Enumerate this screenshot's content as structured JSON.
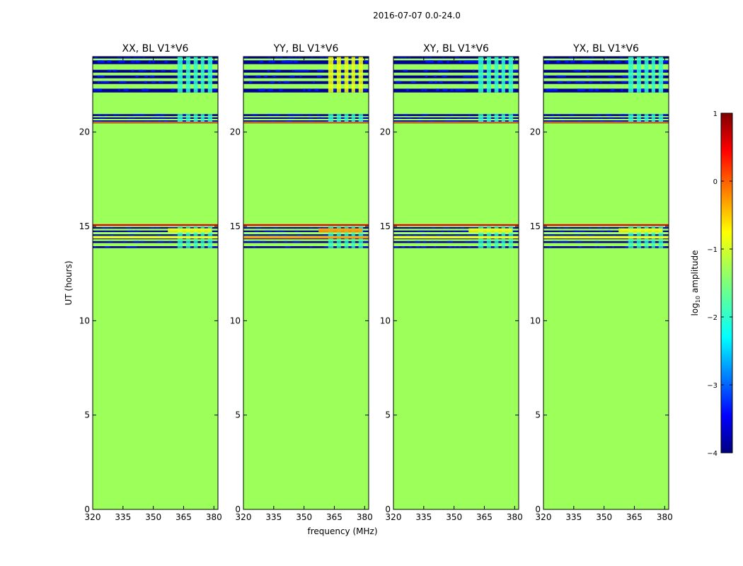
{
  "figure": {
    "title": "2016-07-07 0.0-24.0",
    "xlabel": "frequency (MHz)",
    "ylabel": "UT (hours)"
  },
  "chart_data": {
    "type": "heatmap",
    "title": "2016-07-07 0.0-24.0",
    "xlabel": "frequency (MHz)",
    "ylabel": "UT (hours)",
    "xlim": [
      320,
      382
    ],
    "ylim": [
      0,
      24
    ],
    "xticks": [
      320,
      335,
      350,
      365,
      380
    ],
    "yticks": [
      0,
      5,
      10,
      15,
      20
    ],
    "panels": [
      {
        "title": "XX, BL V1*V6",
        "pol": "XX",
        "strong_bands_15": "yellow"
      },
      {
        "title": "YY, BL V1*V6",
        "pol": "YY",
        "strong_bands_15": "orange"
      },
      {
        "title": "XY, BL V1*V6",
        "pol": "XY",
        "strong_bands_15": "yellow"
      },
      {
        "title": "YX, BL V1*V6",
        "pol": "YX",
        "strong_bands_15": "yellow"
      }
    ],
    "background_log10_amplitude": -1.2,
    "flagged_time_bands_hours": [
      [
        13.85,
        13.95
      ],
      [
        14.12,
        14.22
      ],
      [
        14.32,
        14.4
      ],
      [
        14.5,
        14.58
      ],
      [
        14.7,
        14.78
      ],
      [
        14.88,
        14.96
      ],
      [
        20.55,
        20.62
      ],
      [
        20.7,
        20.78
      ],
      [
        20.85,
        20.95
      ],
      [
        22.1,
        22.3
      ],
      [
        22.55,
        22.7
      ],
      [
        22.85,
        23.0
      ],
      [
        23.15,
        23.3
      ],
      [
        23.6,
        23.8
      ],
      [
        23.9,
        24.0
      ]
    ],
    "colorbar": {
      "label": "log",
      "label_sub": "10",
      "label_rest": " amplitude",
      "min": -4,
      "max": 1,
      "ticks": [
        -4,
        -3,
        -2,
        -1,
        0,
        1
      ],
      "tick_labels": [
        "−4",
        "−3",
        "−2",
        "−1",
        "0",
        "1"
      ],
      "colormap": "jet"
    }
  },
  "colors": {
    "background_green": "#9dff5a",
    "dark_blue": "#000090",
    "blue": "#0010ff",
    "cyan": "#30ffd0",
    "yellow": "#f0ff10",
    "orange": "#ffa000",
    "red": "#e01000"
  }
}
